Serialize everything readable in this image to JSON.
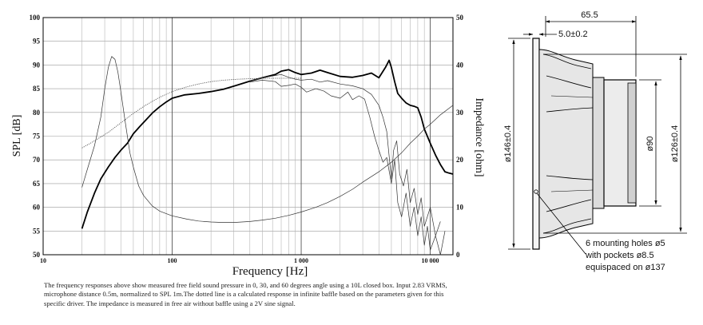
{
  "chart_data": {
    "type": "line",
    "x_axis": {
      "label": "Frequency [Hz]",
      "scale": "log",
      "range": [
        10,
        15000
      ],
      "ticks": [
        {
          "value": 10,
          "label": "10"
        },
        {
          "value": 100,
          "label": "100"
        },
        {
          "value": 1000,
          "label": "1 000"
        },
        {
          "value": 10000,
          "label": "10 000"
        }
      ]
    },
    "y_axis_left": {
      "label": "SPL [dB]",
      "range": [
        50,
        100
      ],
      "ticks": [
        50,
        55,
        60,
        65,
        70,
        75,
        80,
        85,
        90,
        95,
        100
      ]
    },
    "y_axis_right": {
      "label": "Impedance [ohm]",
      "range": [
        0,
        50
      ],
      "ticks": [
        0,
        10,
        20,
        30,
        40,
        50
      ]
    },
    "grid": true,
    "series": [
      {
        "role": "spl_on_axis",
        "axis": "left",
        "style": "thick",
        "x": [
          20,
          22,
          25,
          28,
          32,
          36,
          40,
          45,
          50,
          56,
          63,
          71,
          80,
          90,
          100,
          125,
          160,
          200,
          250,
          315,
          400,
          500,
          630,
          700,
          800,
          900,
          1000,
          1200,
          1400,
          1600,
          2000,
          2500,
          3000,
          3500,
          4000,
          4500,
          4800,
          5000,
          5300,
          5600,
          6000,
          6500,
          7000,
          7500,
          8000,
          8500,
          9000,
          10000,
          11000,
          12000,
          13000,
          14000,
          15000
        ],
        "y": [
          55.5,
          59,
          63,
          66,
          68.5,
          70.5,
          72,
          73.5,
          75.5,
          77,
          78.5,
          80,
          81.2,
          82.2,
          83,
          83.7,
          84,
          84.4,
          84.9,
          85.7,
          86.6,
          87.3,
          88,
          88.7,
          89,
          88.4,
          88,
          88.3,
          88.9,
          88.4,
          87.6,
          87.4,
          87.8,
          88.3,
          87.3,
          89.5,
          91,
          89.5,
          86.5,
          84,
          83,
          82,
          81.5,
          81.3,
          81,
          79,
          76.5,
          73.5,
          71,
          69,
          67.5,
          67.2,
          67
        ]
      },
      {
        "role": "spl_30deg",
        "axis": "left",
        "style": "thin",
        "x": [
          400,
          500,
          630,
          700,
          800,
          900,
          1000,
          1200,
          1400,
          1600,
          2000,
          2500,
          3000,
          3500,
          4000,
          4300,
          4600,
          5000,
          5200,
          5500,
          5800,
          6200,
          6600,
          7000,
          7500,
          8000,
          8500,
          9000,
          10000,
          11000,
          12000
        ],
        "y": [
          86.6,
          87.3,
          87.8,
          88,
          87.4,
          87,
          86.8,
          87,
          86.4,
          86.7,
          86,
          85.6,
          85,
          83.8,
          81.5,
          79,
          76,
          66,
          72,
          74,
          67,
          64.5,
          68,
          61,
          64,
          58.5,
          62,
          56,
          60,
          54,
          57
        ]
      },
      {
        "role": "spl_60deg",
        "axis": "left",
        "style": "thin",
        "x": [
          400,
          500,
          630,
          700,
          800,
          900,
          1000,
          1100,
          1300,
          1500,
          1700,
          2000,
          2300,
          2500,
          2800,
          3100,
          3400,
          3700,
          4000,
          4300,
          4600,
          5000,
          5300,
          5600,
          6000,
          6500,
          7000,
          7500,
          8000,
          8500,
          9000,
          9500,
          10000,
          11000,
          12000,
          13000
        ],
        "y": [
          86.4,
          86.8,
          86.5,
          85.5,
          85.7,
          86,
          85.3,
          84.3,
          85,
          84.5,
          83.5,
          83,
          84.3,
          82.7,
          83.5,
          82.8,
          79,
          75,
          72,
          69.5,
          70.5,
          65,
          70,
          61,
          58,
          63,
          56,
          60,
          54,
          58,
          52,
          56,
          51,
          54,
          50,
          55
        ]
      },
      {
        "role": "impedance",
        "axis": "right",
        "style": "thin",
        "x": [
          20,
          22,
          25,
          28,
          30,
          32,
          34,
          36,
          38,
          40,
          43,
          47,
          50,
          55,
          60,
          70,
          80,
          100,
          130,
          160,
          200,
          250,
          300,
          400,
          500,
          630,
          800,
          1000,
          1300,
          1600,
          2000,
          2500,
          3000,
          4000,
          5000,
          6000,
          7000,
          8000,
          9000,
          10000,
          12000,
          15000
        ],
        "y": [
          14.2,
          18,
          23,
          29,
          35,
          39.5,
          41.8,
          41.2,
          38.5,
          34.5,
          28.5,
          21.5,
          18.5,
          14.5,
          12.5,
          10.3,
          9.2,
          8.2,
          7.5,
          7.1,
          6.9,
          6.8,
          6.8,
          7,
          7.3,
          7.7,
          8.3,
          9,
          10,
          11,
          12.3,
          13.8,
          15.3,
          17.5,
          19.5,
          21.5,
          23.5,
          25,
          26.5,
          27.5,
          29.5,
          31.5
        ]
      },
      {
        "role": "calculated_infinite_baffle",
        "axis": "left",
        "style": "dotted",
        "x": [
          20,
          25,
          32,
          40,
          50,
          63,
          80,
          100,
          130,
          160,
          200,
          250,
          320,
          400,
          500,
          630,
          800,
          1000
        ],
        "y": [
          72.5,
          74,
          75.8,
          77.8,
          79.8,
          81.6,
          83.2,
          84.4,
          85.4,
          86,
          86.5,
          86.8,
          87,
          87.1,
          87.2,
          87.2,
          87.2,
          87.2
        ]
      }
    ]
  },
  "caption": "The frequency responses above show measured free field sound pressure in 0, 30, and 60 degrees angle using a 10L closed box. Input 2.83 VRMS, microphone distance 0.5m, normalized to SPL 1m.The dotted line is a calculated response in infinite baffle based on the parameters given for this specific driver. The impedance is measured in free air without baffle using a 2V sine signal.",
  "drawing": {
    "dim_depth": "65.5",
    "dim_flange": "5.0±0.2",
    "dim_outer_dia": "ø146±0.4",
    "dim_magnet_dia": "ø90",
    "dim_cutout_dia": "ø126±0.4",
    "note_lines": [
      "6 mounting holes ø5",
      "with pockets ø8.5",
      "equispaced on ø137"
    ]
  }
}
